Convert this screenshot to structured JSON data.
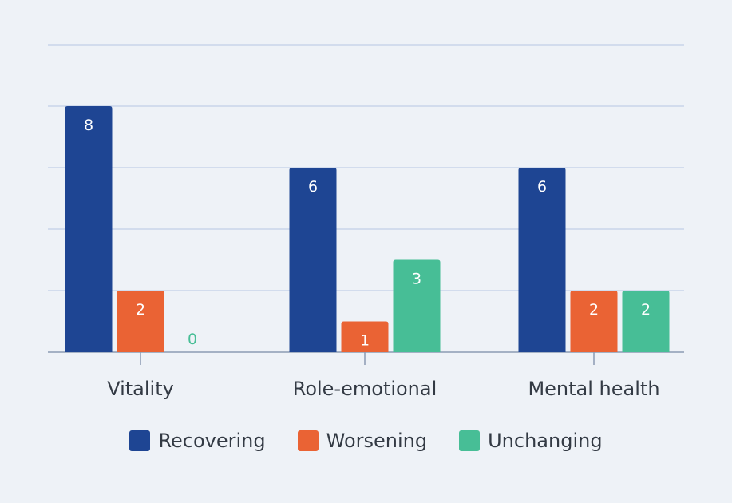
{
  "chart_data": {
    "type": "bar",
    "categories": [
      "Vitality",
      "Role-emotional",
      "Mental health"
    ],
    "series": [
      {
        "name": "Recovering",
        "color": "#1e4593",
        "values": [
          8,
          6,
          6
        ]
      },
      {
        "name": "Worsening",
        "color": "#ea6334",
        "values": [
          2,
          1,
          2
        ]
      },
      {
        "name": "Unchanging",
        "color": "#47be96",
        "values": [
          0,
          3,
          2
        ]
      }
    ],
    "ylim": [
      0,
      10
    ],
    "grid": true,
    "legend_position": "bottom",
    "colors": {
      "background": "#eef2f7",
      "gridline": "#b7c6e3",
      "axis": "#8c9bb3",
      "text": "#333a44"
    }
  }
}
